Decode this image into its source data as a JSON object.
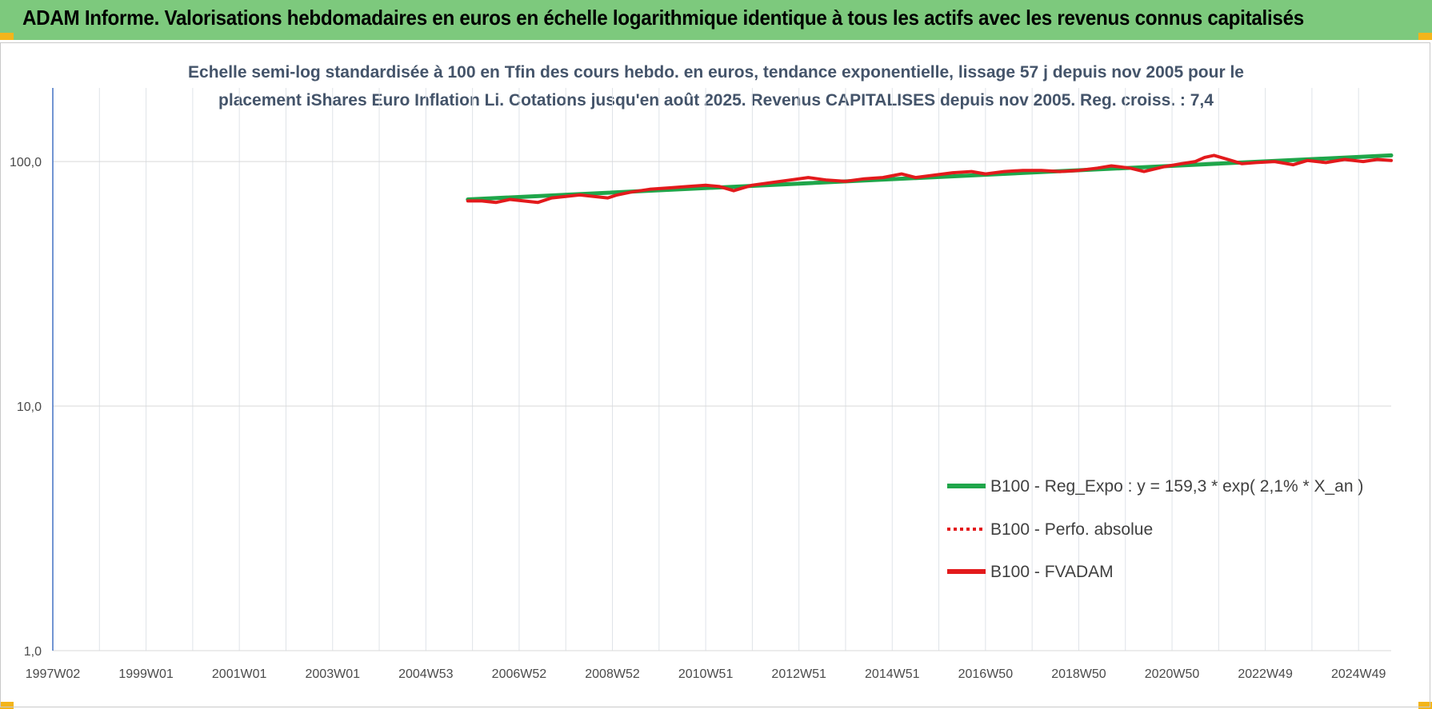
{
  "banner": {
    "title": "ADAM Informe. Valorisations hebdomadaires en euros en échelle logarithmique identique à tous les actifs avec les revenus connus capitalisés",
    "background": "#7dc97d",
    "corner_color": "#f3b51b"
  },
  "chart_data": {
    "type": "line",
    "title_line1": "Echelle semi-log standardisée à 100 en Tfin des cours hebdo. en euros, tendance exponentielle, lissage 57 j depuis nov 2005 pour le",
    "title_line2": "placement iShares Euro Inflation Li. Cotations jusqu'en août 2025. Revenus CAPITALISES depuis nov 2005. Reg. croiss. : 7,4",
    "y_scale": "log",
    "ylim": [
      1,
      200
    ],
    "y_ticks": [
      {
        "value": 1,
        "label": "1,0"
      },
      {
        "value": 10,
        "label": "10,0"
      },
      {
        "value": 100,
        "label": "100,0"
      }
    ],
    "x_range_years": [
      1997.0,
      2025.7
    ],
    "x_tick_labels": [
      "1997W02",
      "1999W01",
      "2001W01",
      "2003W01",
      "2004W53",
      "2006W52",
      "2008W52",
      "2010W51",
      "2012W51",
      "2014W51",
      "2016W50",
      "2018W50",
      "2020W50",
      "2022W49",
      "2024W49"
    ],
    "x_tick_years": [
      1997.0,
      1999.0,
      2001.0,
      2003.0,
      2005.0,
      2007.0,
      2009.0,
      2011.0,
      2013.0,
      2015.0,
      2017.0,
      2019.0,
      2021.0,
      2023.0,
      2025.0
    ],
    "grid": true,
    "legend_position": "bottom-right",
    "series": [
      {
        "name": "B100 - Reg_Expo : y = 159,3 * exp( 2,1% *  X_an )",
        "color": "#1fa64a",
        "style": "solid",
        "x": [
          2005.9,
          2025.7
        ],
        "y": [
          70,
          106
        ]
      },
      {
        "name": "B100 - Perfo. absolue",
        "color": "#e31a1c",
        "style": "dotted",
        "x": [],
        "y": []
      },
      {
        "name": "B100 - FVADAM",
        "color": "#e31a1c",
        "style": "solid",
        "x": [
          2005.9,
          2006.2,
          2006.5,
          2006.8,
          2007.1,
          2007.4,
          2007.7,
          2008.0,
          2008.3,
          2008.6,
          2008.9,
          2009.1,
          2009.4,
          2009.8,
          2010.2,
          2010.6,
          2011.0,
          2011.3,
          2011.6,
          2011.8,
          2012.0,
          2012.4,
          2012.8,
          2013.2,
          2013.6,
          2014.0,
          2014.4,
          2014.8,
          2015.2,
          2015.5,
          2015.9,
          2016.3,
          2016.7,
          2017.0,
          2017.4,
          2017.8,
          2018.2,
          2018.6,
          2019.0,
          2019.4,
          2019.7,
          2020.1,
          2020.4,
          2020.8,
          2021.2,
          2021.5,
          2021.7,
          2021.9,
          2022.2,
          2022.5,
          2022.8,
          2023.2,
          2023.6,
          2023.9,
          2024.3,
          2024.7,
          2025.1,
          2025.4,
          2025.7
        ],
        "y": [
          69,
          69,
          68,
          70,
          69,
          68,
          71,
          72,
          73,
          72,
          71,
          73,
          75,
          77,
          78,
          79,
          80,
          79,
          76,
          78,
          80,
          82,
          84,
          86,
          84,
          83,
          85,
          86,
          89,
          86,
          88,
          90,
          91,
          89,
          91,
          92,
          92,
          91,
          92,
          94,
          96,
          94,
          91,
          95,
          98,
          100,
          104,
          106,
          102,
          98,
          99,
          100,
          97,
          101,
          99,
          102,
          100,
          102,
          101
        ]
      }
    ]
  }
}
